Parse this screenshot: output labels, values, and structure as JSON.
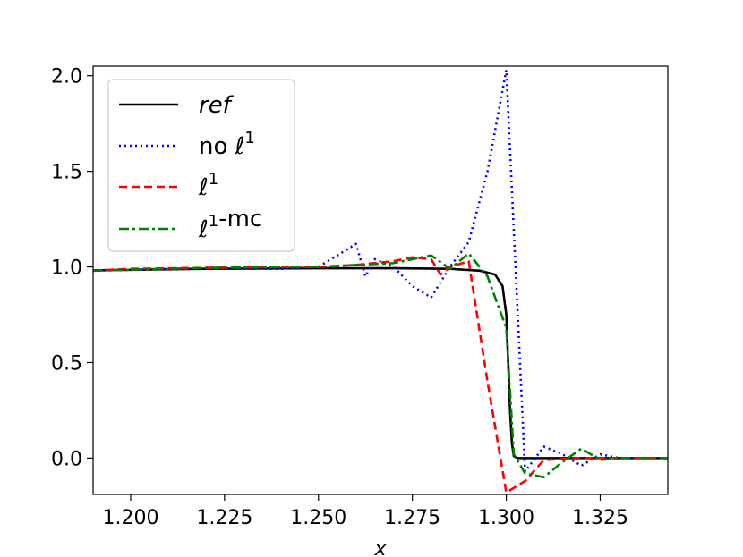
{
  "chart_data": {
    "type": "line",
    "title": "",
    "xlabel": "x",
    "ylabel": "",
    "xlim": [
      1.19,
      1.343
    ],
    "ylim": [
      -0.19,
      2.05
    ],
    "xticks": [
      1.2,
      1.225,
      1.25,
      1.275,
      1.3,
      1.325
    ],
    "xtick_labels": [
      "1.200",
      "1.225",
      "1.250",
      "1.275",
      "1.300",
      "1.325"
    ],
    "yticks": [
      0.0,
      0.5,
      1.0,
      1.5,
      2.0
    ],
    "ytick_labels": [
      "0.0",
      "0.5",
      "1.0",
      "1.5",
      "2.0"
    ],
    "grid": false,
    "legend_position": "upper-left",
    "series": [
      {
        "name": "ref",
        "color": "#000000",
        "style": "solid",
        "x": [
          1.19,
          1.22,
          1.25,
          1.27,
          1.285,
          1.293,
          1.297,
          1.299,
          1.3,
          1.3005,
          1.301,
          1.3015,
          1.302,
          1.303,
          1.343
        ],
        "y": [
          0.982,
          0.99,
          0.993,
          0.993,
          0.99,
          0.98,
          0.96,
          0.9,
          0.75,
          0.5,
          0.25,
          0.08,
          0.01,
          0.0,
          0.0
        ]
      },
      {
        "name": "no ℓ¹",
        "color": "#0000ff",
        "style": "dotted",
        "x": [
          1.19,
          1.2,
          1.21,
          1.22,
          1.23,
          1.24,
          1.25,
          1.26,
          1.2625,
          1.265,
          1.27,
          1.275,
          1.28,
          1.285,
          1.29,
          1.295,
          1.3,
          1.305,
          1.31,
          1.315,
          1.32,
          1.325,
          1.33,
          1.343
        ],
        "y": [
          0.98,
          0.985,
          0.99,
          0.99,
          0.99,
          0.99,
          1.0,
          1.12,
          0.95,
          1.04,
          1.0,
          0.9,
          0.84,
          1.0,
          1.13,
          1.5,
          2.03,
          -0.07,
          0.06,
          0.02,
          -0.04,
          0.02,
          0.0,
          0.0
        ]
      },
      {
        "name": "ℓ¹",
        "color": "#ff0000",
        "style": "dashed",
        "x": [
          1.19,
          1.2,
          1.22,
          1.24,
          1.25,
          1.26,
          1.27,
          1.275,
          1.28,
          1.2825,
          1.285,
          1.29,
          1.295,
          1.3,
          1.305,
          1.31,
          1.32,
          1.33,
          1.343
        ],
        "y": [
          0.98,
          0.99,
          0.995,
          1.0,
          1.0,
          1.01,
          1.03,
          1.05,
          1.04,
          0.96,
          1.0,
          1.03,
          0.4,
          -0.18,
          -0.12,
          -0.01,
          0.0,
          0.0,
          0.0
        ]
      },
      {
        "name": "ℓ¹-mc",
        "color": "#008000",
        "style": "dashdot",
        "x": [
          1.19,
          1.22,
          1.25,
          1.27,
          1.28,
          1.285,
          1.29,
          1.295,
          1.3,
          1.302,
          1.305,
          1.31,
          1.315,
          1.32,
          1.325,
          1.33,
          1.343
        ],
        "y": [
          0.98,
          0.995,
          1.0,
          1.02,
          1.06,
          0.99,
          1.07,
          0.95,
          0.68,
          0.02,
          -0.08,
          -0.1,
          -0.02,
          0.05,
          -0.01,
          0.0,
          0.0
        ]
      }
    ],
    "legend": [
      {
        "series_index": 0,
        "parts": [
          {
            "t": "ref",
            "italic": true
          }
        ]
      },
      {
        "series_index": 1,
        "parts": [
          {
            "t": "no ",
            "italic": false
          },
          {
            "t": "ℓ",
            "italic": true
          },
          {
            "t": "1",
            "sup": true
          }
        ]
      },
      {
        "series_index": 2,
        "parts": [
          {
            "t": "ℓ",
            "italic": true
          },
          {
            "t": "1",
            "sup": true
          }
        ]
      },
      {
        "series_index": 3,
        "parts": [
          {
            "t": "ℓ",
            "italic": true
          },
          {
            "t": "1",
            "sup": true
          },
          {
            "t": "-mc",
            "italic": false
          }
        ]
      }
    ]
  }
}
